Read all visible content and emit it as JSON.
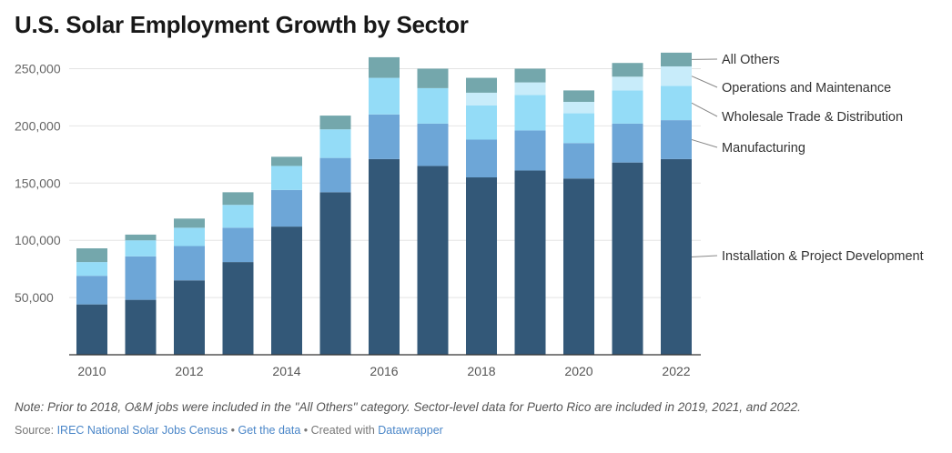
{
  "title": "U.S. Solar Employment Growth by Sector",
  "note": "Note: Prior to 2018, O&M jobs were included in the \"All Others\" category. Sector-level data for Puerto Rico are included in 2019, 2021, and 2022.",
  "source": {
    "prefix": "Source: ",
    "source_link": "IREC National Solar Jobs Census",
    "sep1": " • ",
    "data_link": "Get the data",
    "sep2": " • Created with ",
    "tool_link": "Datawrapper"
  },
  "chart_data": {
    "type": "bar",
    "stacked": true,
    "categories": [
      "2010",
      "2011",
      "2012",
      "2013",
      "2014",
      "2015",
      "2016",
      "2017",
      "2018",
      "2019",
      "2020",
      "2021",
      "2022"
    ],
    "x_tick_labels": [
      "2010",
      "2012",
      "2014",
      "2016",
      "2018",
      "2020",
      "2022"
    ],
    "y_ticks": [
      50000,
      100000,
      150000,
      200000,
      250000
    ],
    "y_tick_labels": [
      "50,000",
      "100,000",
      "150,000",
      "200,000",
      "250,000"
    ],
    "ylim": [
      0,
      265000
    ],
    "grid": true,
    "legend_position": "right (direct labels)",
    "series": [
      {
        "name": "Installation & Project Development",
        "color": "#335878",
        "values": [
          44000,
          48000,
          65000,
          81000,
          112000,
          142000,
          171000,
          165000,
          155000,
          161000,
          154000,
          168000,
          171000
        ]
      },
      {
        "name": "Manufacturing",
        "color": "#6da6d7",
        "values": [
          25000,
          38000,
          30000,
          30000,
          32000,
          30000,
          39000,
          37000,
          33000,
          35000,
          31000,
          34000,
          34000
        ]
      },
      {
        "name": "Wholesale Trade & Distribution",
        "color": "#94dcf7",
        "values": [
          12000,
          14000,
          16000,
          20000,
          21000,
          25000,
          32000,
          31000,
          30000,
          31000,
          26000,
          29000,
          30000
        ]
      },
      {
        "name": "Operations and Maintenance",
        "color": "#c8ecfa",
        "values": [
          0,
          0,
          0,
          0,
          0,
          0,
          0,
          0,
          11000,
          11000,
          10000,
          12000,
          17000
        ]
      },
      {
        "name": "All Others",
        "color": "#74a7ac",
        "values": [
          12000,
          5000,
          8000,
          11000,
          8000,
          12000,
          18000,
          17000,
          13000,
          12000,
          10000,
          12000,
          12000
        ]
      }
    ]
  }
}
